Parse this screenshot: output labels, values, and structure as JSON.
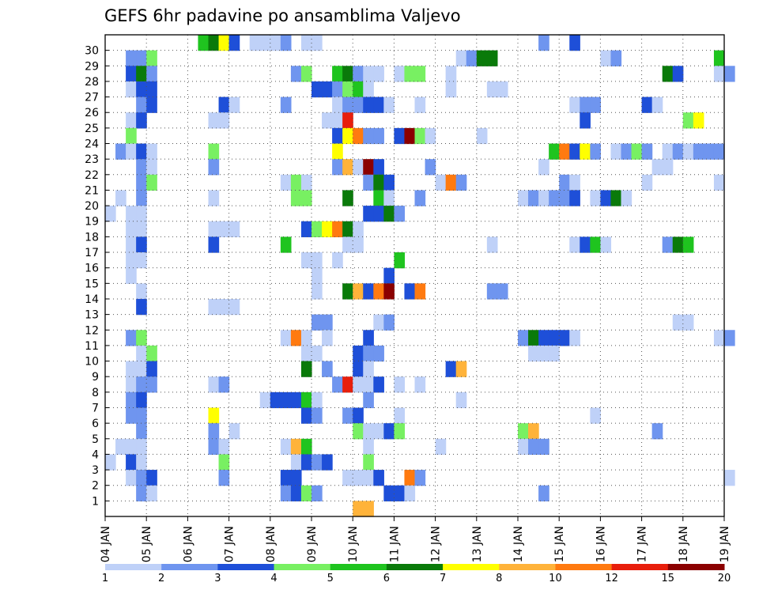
{
  "chart_data": {
    "type": "heatmap",
    "title": "GEFS 6hr padavine po ansamblima Valjevo",
    "xlabel": "",
    "ylabel": "",
    "grid": true,
    "x_start_day": 4,
    "x_end_day": 19,
    "step_hours": 6,
    "x_tick_labels": [
      "04 JAN",
      "05 JAN",
      "06 JAN",
      "07 JAN",
      "08 JAN",
      "09 JAN",
      "10 JAN",
      "11 JAN",
      "12 JAN",
      "13 JAN",
      "14 JAN",
      "15 JAN",
      "16 JAN",
      "17 JAN",
      "18 JAN",
      "19 JAN"
    ],
    "y_tick_labels": [
      "1",
      "2",
      "3",
      "4",
      "5",
      "6",
      "7",
      "8",
      "9",
      "10",
      "11",
      "12",
      "13",
      "14",
      "15",
      "16",
      "17",
      "18",
      "19",
      "20",
      "21",
      "22",
      "23",
      "24",
      "25",
      "26",
      "27",
      "28",
      "29",
      "30"
    ],
    "colorbar": {
      "colors": [
        "#bfd1f8",
        "#6f95ef",
        "#1e4fd8",
        "#78f062",
        "#1fc41f",
        "#0a7a0a",
        "#ffff00",
        "#ffb33a",
        "#ff7a10",
        "#e81e0c",
        "#8b0000"
      ],
      "labels": [
        "1",
        "2",
        "3",
        "4",
        "5",
        "6",
        "7",
        "8",
        "10",
        "12",
        "15",
        "20"
      ],
      "legend_placement": "bottom"
    },
    "series_note": "cells listed as [member, day_from_start_in_6h_steps_index, class]",
    "cells": [
      [
        30,
        9,
        5
      ],
      [
        30,
        10,
        6
      ],
      [
        30,
        11,
        7
      ],
      [
        30,
        12,
        3
      ],
      [
        30,
        14,
        1
      ],
      [
        30,
        15,
        1
      ],
      [
        30,
        16,
        1
      ],
      [
        30,
        17,
        2
      ],
      [
        30,
        19,
        1
      ],
      [
        30,
        20,
        1
      ],
      [
        30,
        42,
        2
      ],
      [
        30,
        45,
        3
      ],
      [
        29,
        2,
        2
      ],
      [
        29,
        3,
        2
      ],
      [
        29,
        4,
        4
      ],
      [
        29,
        34,
        1
      ],
      [
        29,
        35,
        2
      ],
      [
        29,
        36,
        6
      ],
      [
        29,
        37,
        6
      ],
      [
        29,
        48,
        1
      ],
      [
        29,
        49,
        2
      ],
      [
        29,
        59,
        5
      ],
      [
        28,
        2,
        3
      ],
      [
        28,
        3,
        6
      ],
      [
        28,
        4,
        2
      ],
      [
        28,
        18,
        2
      ],
      [
        28,
        19,
        4
      ],
      [
        28,
        22,
        5
      ],
      [
        28,
        23,
        6
      ],
      [
        28,
        24,
        2
      ],
      [
        28,
        25,
        1
      ],
      [
        28,
        26,
        1
      ],
      [
        28,
        28,
        1
      ],
      [
        28,
        29,
        4
      ],
      [
        28,
        30,
        4
      ],
      [
        28,
        33,
        1
      ],
      [
        28,
        54,
        6
      ],
      [
        28,
        55,
        3
      ],
      [
        28,
        59,
        1
      ],
      [
        28,
        60,
        2
      ],
      [
        27,
        2,
        1
      ],
      [
        27,
        3,
        3
      ],
      [
        27,
        4,
        3
      ],
      [
        27,
        20,
        3
      ],
      [
        27,
        21,
        3
      ],
      [
        27,
        22,
        2
      ],
      [
        27,
        23,
        4
      ],
      [
        27,
        24,
        5
      ],
      [
        27,
        25,
        1
      ],
      [
        27,
        33,
        1
      ],
      [
        27,
        37,
        1
      ],
      [
        27,
        38,
        1
      ],
      [
        26,
        3,
        2
      ],
      [
        26,
        4,
        3
      ],
      [
        26,
        11,
        3
      ],
      [
        26,
        12,
        1
      ],
      [
        26,
        17,
        2
      ],
      [
        26,
        22,
        1
      ],
      [
        26,
        23,
        2
      ],
      [
        26,
        24,
        2
      ],
      [
        26,
        25,
        3
      ],
      [
        26,
        26,
        3
      ],
      [
        26,
        27,
        1
      ],
      [
        26,
        30,
        1
      ],
      [
        26,
        45,
        1
      ],
      [
        26,
        46,
        2
      ],
      [
        26,
        47,
        2
      ],
      [
        26,
        52,
        3
      ],
      [
        26,
        53,
        1
      ],
      [
        25,
        2,
        1
      ],
      [
        25,
        3,
        3
      ],
      [
        25,
        10,
        1
      ],
      [
        25,
        11,
        1
      ],
      [
        25,
        21,
        1
      ],
      [
        25,
        22,
        1
      ],
      [
        25,
        23,
        10
      ],
      [
        25,
        46,
        3
      ],
      [
        25,
        56,
        4
      ],
      [
        25,
        57,
        7
      ],
      [
        24,
        2,
        4
      ],
      [
        24,
        22,
        3
      ],
      [
        24,
        23,
        7
      ],
      [
        24,
        24,
        9
      ],
      [
        24,
        25,
        2
      ],
      [
        24,
        26,
        2
      ],
      [
        24,
        28,
        3
      ],
      [
        24,
        29,
        11
      ],
      [
        24,
        30,
        4
      ],
      [
        24,
        31,
        1
      ],
      [
        24,
        36,
        1
      ],
      [
        23,
        1,
        2
      ],
      [
        23,
        2,
        1
      ],
      [
        23,
        3,
        3
      ],
      [
        23,
        4,
        1
      ],
      [
        23,
        10,
        4
      ],
      [
        23,
        22,
        7
      ],
      [
        23,
        43,
        5
      ],
      [
        23,
        44,
        9
      ],
      [
        23,
        45,
        3
      ],
      [
        23,
        46,
        7
      ],
      [
        23,
        47,
        2
      ],
      [
        23,
        49,
        1
      ],
      [
        23,
        50,
        2
      ],
      [
        23,
        51,
        4
      ],
      [
        23,
        52,
        2
      ],
      [
        23,
        54,
        1
      ],
      [
        23,
        55,
        2
      ],
      [
        23,
        56,
        1
      ],
      [
        23,
        57,
        2
      ],
      [
        23,
        58,
        2
      ],
      [
        23,
        59,
        2
      ],
      [
        22,
        3,
        2
      ],
      [
        22,
        4,
        1
      ],
      [
        22,
        10,
        2
      ],
      [
        22,
        22,
        2
      ],
      [
        22,
        23,
        8
      ],
      [
        22,
        24,
        1
      ],
      [
        22,
        25,
        11
      ],
      [
        22,
        26,
        3
      ],
      [
        22,
        31,
        2
      ],
      [
        22,
        42,
        1
      ],
      [
        22,
        53,
        1
      ],
      [
        22,
        54,
        1
      ],
      [
        21,
        3,
        2
      ],
      [
        21,
        4,
        4
      ],
      [
        21,
        17,
        1
      ],
      [
        21,
        18,
        4
      ],
      [
        21,
        19,
        1
      ],
      [
        21,
        25,
        2
      ],
      [
        21,
        26,
        6
      ],
      [
        21,
        27,
        3
      ],
      [
        21,
        32,
        1
      ],
      [
        21,
        33,
        9
      ],
      [
        21,
        34,
        2
      ],
      [
        21,
        44,
        2
      ],
      [
        21,
        45,
        1
      ],
      [
        21,
        52,
        1
      ],
      [
        21,
        59,
        1
      ],
      [
        20,
        1,
        1
      ],
      [
        20,
        3,
        2
      ],
      [
        20,
        10,
        1
      ],
      [
        20,
        18,
        4
      ],
      [
        20,
        19,
        4
      ],
      [
        20,
        23,
        6
      ],
      [
        20,
        26,
        5
      ],
      [
        20,
        27,
        1
      ],
      [
        20,
        30,
        2
      ],
      [
        20,
        40,
        1
      ],
      [
        20,
        41,
        2
      ],
      [
        20,
        42,
        1
      ],
      [
        20,
        43,
        2
      ],
      [
        20,
        44,
        2
      ],
      [
        20,
        45,
        3
      ],
      [
        20,
        47,
        1
      ],
      [
        20,
        48,
        3
      ],
      [
        20,
        49,
        6
      ],
      [
        20,
        50,
        1
      ],
      [
        19,
        0,
        1
      ],
      [
        19,
        2,
        1
      ],
      [
        19,
        3,
        1
      ],
      [
        19,
        25,
        3
      ],
      [
        19,
        26,
        3
      ],
      [
        19,
        27,
        6
      ],
      [
        19,
        28,
        2
      ],
      [
        18,
        2,
        1
      ],
      [
        18,
        3,
        1
      ],
      [
        18,
        10,
        1
      ],
      [
        18,
        11,
        1
      ],
      [
        18,
        12,
        1
      ],
      [
        18,
        19,
        3
      ],
      [
        18,
        20,
        4
      ],
      [
        18,
        21,
        7
      ],
      [
        18,
        22,
        9
      ],
      [
        18,
        23,
        6
      ],
      [
        18,
        24,
        1
      ],
      [
        17,
        2,
        1
      ],
      [
        17,
        3,
        3
      ],
      [
        17,
        10,
        3
      ],
      [
        17,
        17,
        5
      ],
      [
        17,
        23,
        1
      ],
      [
        17,
        24,
        1
      ],
      [
        17,
        37,
        1
      ],
      [
        17,
        45,
        1
      ],
      [
        17,
        46,
        3
      ],
      [
        17,
        47,
        5
      ],
      [
        17,
        48,
        1
      ],
      [
        17,
        54,
        2
      ],
      [
        17,
        55,
        6
      ],
      [
        17,
        56,
        5
      ],
      [
        16,
        2,
        1
      ],
      [
        16,
        3,
        1
      ],
      [
        16,
        19,
        1
      ],
      [
        16,
        20,
        1
      ],
      [
        16,
        22,
        1
      ],
      [
        16,
        28,
        5
      ],
      [
        15,
        2,
        1
      ],
      [
        15,
        20,
        1
      ],
      [
        15,
        27,
        3
      ],
      [
        14,
        3,
        1
      ],
      [
        14,
        20,
        1
      ],
      [
        14,
        23,
        6
      ],
      [
        14,
        24,
        8
      ],
      [
        14,
        25,
        3
      ],
      [
        14,
        26,
        9
      ],
      [
        14,
        27,
        11
      ],
      [
        14,
        29,
        3
      ],
      [
        14,
        30,
        9
      ],
      [
        14,
        37,
        2
      ],
      [
        14,
        38,
        2
      ],
      [
        13,
        3,
        3
      ],
      [
        13,
        10,
        1
      ],
      [
        13,
        11,
        1
      ],
      [
        13,
        12,
        1
      ],
      [
        12,
        20,
        2
      ],
      [
        12,
        21,
        2
      ],
      [
        12,
        26,
        1
      ],
      [
        12,
        27,
        2
      ],
      [
        12,
        55,
        1
      ],
      [
        12,
        56,
        1
      ],
      [
        11,
        2,
        2
      ],
      [
        11,
        3,
        4
      ],
      [
        11,
        17,
        1
      ],
      [
        11,
        18,
        9
      ],
      [
        11,
        19,
        1
      ],
      [
        11,
        21,
        1
      ],
      [
        11,
        25,
        3
      ],
      [
        11,
        40,
        2
      ],
      [
        11,
        41,
        6
      ],
      [
        11,
        42,
        3
      ],
      [
        11,
        43,
        3
      ],
      [
        11,
        44,
        3
      ],
      [
        11,
        45,
        1
      ],
      [
        11,
        59,
        1
      ],
      [
        11,
        60,
        2
      ],
      [
        10,
        3,
        1
      ],
      [
        10,
        4,
        4
      ],
      [
        10,
        19,
        1
      ],
      [
        10,
        20,
        1
      ],
      [
        10,
        24,
        3
      ],
      [
        10,
        25,
        2
      ],
      [
        10,
        26,
        2
      ],
      [
        10,
        41,
        1
      ],
      [
        10,
        42,
        1
      ],
      [
        10,
        43,
        1
      ],
      [
        9,
        2,
        1
      ],
      [
        9,
        3,
        1
      ],
      [
        9,
        4,
        3
      ],
      [
        9,
        19,
        6
      ],
      [
        9,
        21,
        2
      ],
      [
        9,
        24,
        3
      ],
      [
        9,
        25,
        1
      ],
      [
        9,
        33,
        3
      ],
      [
        9,
        34,
        8
      ],
      [
        8,
        2,
        1
      ],
      [
        8,
        3,
        2
      ],
      [
        8,
        4,
        2
      ],
      [
        8,
        10,
        1
      ],
      [
        8,
        11,
        2
      ],
      [
        8,
        22,
        2
      ],
      [
        8,
        23,
        10
      ],
      [
        8,
        24,
        1
      ],
      [
        8,
        25,
        1
      ],
      [
        8,
        26,
        3
      ],
      [
        8,
        28,
        1
      ],
      [
        8,
        30,
        1
      ],
      [
        7,
        2,
        2
      ],
      [
        7,
        3,
        3
      ],
      [
        7,
        15,
        1
      ],
      [
        7,
        16,
        3
      ],
      [
        7,
        17,
        3
      ],
      [
        7,
        18,
        3
      ],
      [
        7,
        19,
        5
      ],
      [
        7,
        20,
        1
      ],
      [
        7,
        25,
        2
      ],
      [
        7,
        34,
        1
      ],
      [
        6,
        2,
        2
      ],
      [
        6,
        3,
        2
      ],
      [
        6,
        10,
        7
      ],
      [
        6,
        19,
        3
      ],
      [
        6,
        20,
        2
      ],
      [
        6,
        23,
        2
      ],
      [
        6,
        24,
        3
      ],
      [
        6,
        28,
        1
      ],
      [
        6,
        47,
        1
      ],
      [
        5,
        3,
        2
      ],
      [
        5,
        10,
        2
      ],
      [
        5,
        12,
        1
      ],
      [
        5,
        24,
        4
      ],
      [
        5,
        25,
        1
      ],
      [
        5,
        26,
        1
      ],
      [
        5,
        27,
        3
      ],
      [
        5,
        28,
        4
      ],
      [
        5,
        40,
        4
      ],
      [
        5,
        41,
        8
      ],
      [
        5,
        53,
        2
      ],
      [
        4,
        1,
        1
      ],
      [
        4,
        2,
        1
      ],
      [
        4,
        3,
        1
      ],
      [
        4,
        10,
        2
      ],
      [
        4,
        11,
        1
      ],
      [
        4,
        17,
        1
      ],
      [
        4,
        18,
        8
      ],
      [
        4,
        19,
        5
      ],
      [
        4,
        25,
        1
      ],
      [
        4,
        32,
        1
      ],
      [
        4,
        40,
        1
      ],
      [
        4,
        41,
        2
      ],
      [
        4,
        42,
        2
      ],
      [
        3,
        0,
        1
      ],
      [
        3,
        2,
        3
      ],
      [
        3,
        3,
        1
      ],
      [
        3,
        11,
        4
      ],
      [
        3,
        18,
        1
      ],
      [
        3,
        19,
        3
      ],
      [
        3,
        20,
        2
      ],
      [
        3,
        21,
        3
      ],
      [
        3,
        25,
        4
      ],
      [
        2,
        2,
        1
      ],
      [
        2,
        3,
        2
      ],
      [
        2,
        4,
        3
      ],
      [
        2,
        11,
        2
      ],
      [
        2,
        17,
        3
      ],
      [
        2,
        18,
        3
      ],
      [
        2,
        23,
        1
      ],
      [
        2,
        24,
        1
      ],
      [
        2,
        25,
        1
      ],
      [
        2,
        26,
        3
      ],
      [
        2,
        29,
        9
      ],
      [
        2,
        30,
        2
      ],
      [
        2,
        60,
        1
      ],
      [
        1,
        3,
        2
      ],
      [
        1,
        4,
        1
      ],
      [
        1,
        17,
        2
      ],
      [
        1,
        18,
        3
      ],
      [
        1,
        19,
        4
      ],
      [
        1,
        20,
        2
      ],
      [
        1,
        27,
        3
      ],
      [
        1,
        28,
        3
      ],
      [
        1,
        29,
        1
      ],
      [
        1,
        42,
        2
      ],
      [
        0,
        24,
        8
      ],
      [
        0,
        25,
        8
      ]
    ]
  }
}
